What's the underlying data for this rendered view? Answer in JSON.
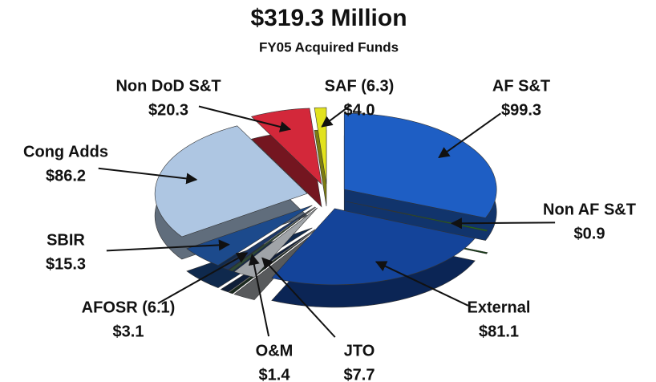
{
  "chart_data": {
    "type": "pie",
    "title": "$319.3 Million",
    "subtitle": "FY05 Acquired Funds",
    "categories": [
      "AF S&T",
      "Non AF S&T",
      "External",
      "JTO",
      "O&M",
      "AFOSR (6.1)",
      "SBIR",
      "Cong Adds",
      "Non DoD S&T",
      "SAF (6.3)"
    ],
    "values": [
      99.3,
      0.9,
      81.1,
      7.7,
      1.4,
      3.1,
      15.3,
      86.2,
      20.3,
      4.0
    ],
    "value_labels": [
      "$99.3",
      "$0.9",
      "$81.1",
      "$7.7",
      "$1.4",
      "$3.1",
      "$15.3",
      "$86.2",
      "$20.3",
      "$4.0"
    ],
    "colors": [
      "#1e5ec4",
      "#1d6e1d",
      "#14449a",
      "#a0a4a8",
      "#2e4a34",
      "#1b3766",
      "#1c4a8c",
      "#aec6e2",
      "#d3283a",
      "#e2e21e"
    ]
  }
}
